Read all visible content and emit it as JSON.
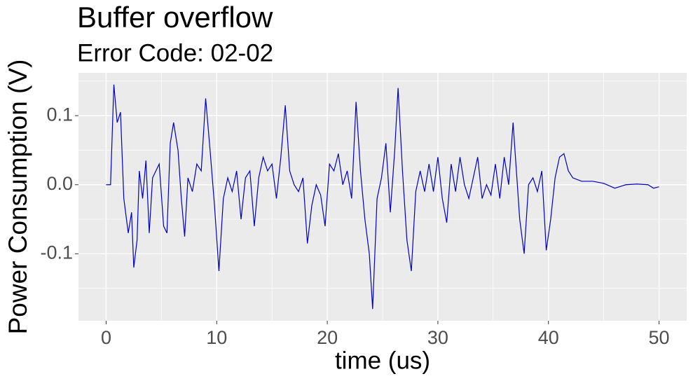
{
  "chart_data": {
    "type": "line",
    "title": "Buffer overflow",
    "subtitle": "Error Code: 02-02",
    "x_label": "time (us)",
    "y_label": "Power Consumption (V)",
    "x": [
      0,
      0.4,
      0.7,
      1.0,
      1.3,
      1.6,
      2.0,
      2.3,
      2.5,
      2.8,
      3.0,
      3.3,
      3.6,
      3.9,
      4.2,
      4.5,
      4.8,
      5.2,
      5.5,
      5.8,
      6.1,
      6.5,
      6.8,
      7.1,
      7.4,
      7.8,
      8.2,
      8.6,
      9.0,
      9.4,
      9.8,
      10.2,
      10.6,
      11.0,
      11.4,
      11.8,
      12.2,
      12.6,
      13.0,
      13.4,
      13.8,
      14.2,
      14.6,
      15.0,
      15.4,
      15.8,
      16.2,
      16.6,
      17.0,
      17.4,
      17.8,
      18.2,
      18.6,
      19.0,
      19.4,
      19.8,
      20.2,
      20.6,
      21.0,
      21.4,
      21.8,
      22.2,
      22.6,
      23.0,
      23.4,
      23.8,
      24.1,
      24.5,
      24.9,
      25.3,
      25.7,
      26.1,
      26.4,
      26.8,
      27.2,
      27.6,
      28.0,
      28.4,
      28.8,
      29.2,
      29.6,
      30.0,
      30.4,
      30.8,
      31.2,
      31.6,
      32.0,
      32.4,
      32.8,
      33.2,
      33.6,
      34.0,
      34.4,
      34.8,
      35.2,
      35.6,
      36.0,
      36.4,
      36.8,
      37.1,
      37.4,
      37.8,
      38.2,
      38.6,
      39.0,
      39.4,
      39.8,
      40.2,
      40.6,
      41.0,
      41.4,
      41.8,
      42.2,
      43.0,
      44.0,
      45.0,
      46.0,
      47.0,
      48.0,
      49.0,
      49.5,
      50.0
    ],
    "series": [
      {
        "name": "Power Consumption",
        "color": "#0000c0",
        "values": [
          0,
          0,
          0.145,
          0.09,
          0.105,
          -0.02,
          -0.07,
          -0.04,
          -0.12,
          -0.08,
          0.02,
          -0.02,
          0.035,
          -0.07,
          0.01,
          0.02,
          0.03,
          -0.06,
          -0.07,
          0.06,
          0.09,
          0.05,
          -0.02,
          -0.075,
          0.01,
          -0.01,
          0.03,
          0.02,
          0.125,
          0.05,
          -0.03,
          -0.125,
          -0.02,
          0.01,
          -0.01,
          0.02,
          -0.05,
          0.01,
          0.02,
          -0.06,
          0.01,
          0.04,
          0.02,
          0.03,
          -0.02,
          0.04,
          0.115,
          0.02,
          0.0,
          -0.01,
          0.01,
          -0.085,
          -0.03,
          0.0,
          -0.015,
          -0.06,
          0.03,
          0.02,
          0.045,
          0.0,
          0.02,
          -0.02,
          0.12,
          0.02,
          -0.05,
          -0.1,
          -0.18,
          -0.02,
          0.01,
          0.06,
          -0.04,
          0.05,
          0.14,
          0.02,
          -0.08,
          -0.125,
          -0.01,
          0.02,
          -0.01,
          0.03,
          -0.01,
          0.04,
          -0.02,
          -0.055,
          0.03,
          -0.01,
          0.04,
          0.0,
          -0.02,
          0.01,
          0.04,
          -0.02,
          0.0,
          -0.015,
          0.03,
          -0.02,
          0.04,
          0.0,
          0.09,
          0.02,
          -0.05,
          -0.1,
          0.0,
          0.01,
          -0.01,
          0.02,
          -0.095,
          -0.05,
          0.01,
          0.04,
          0.045,
          0.02,
          0.01,
          0.005,
          0.005,
          0.002,
          -0.005,
          0.0,
          0.001,
          0.0,
          -0.005,
          -0.003
        ]
      }
    ],
    "xlim": [
      -2.5,
      52.5
    ],
    "xticks": [
      0,
      10,
      20,
      30,
      40,
      50
    ],
    "ylim": [
      -0.197,
      0.162
    ],
    "yticks": [
      {
        "value": -0.1,
        "label": "-0.1"
      },
      {
        "value": 0,
        "label": "0.0"
      },
      {
        "value": 0.1,
        "label": "0.1"
      }
    ],
    "grid": true
  }
}
